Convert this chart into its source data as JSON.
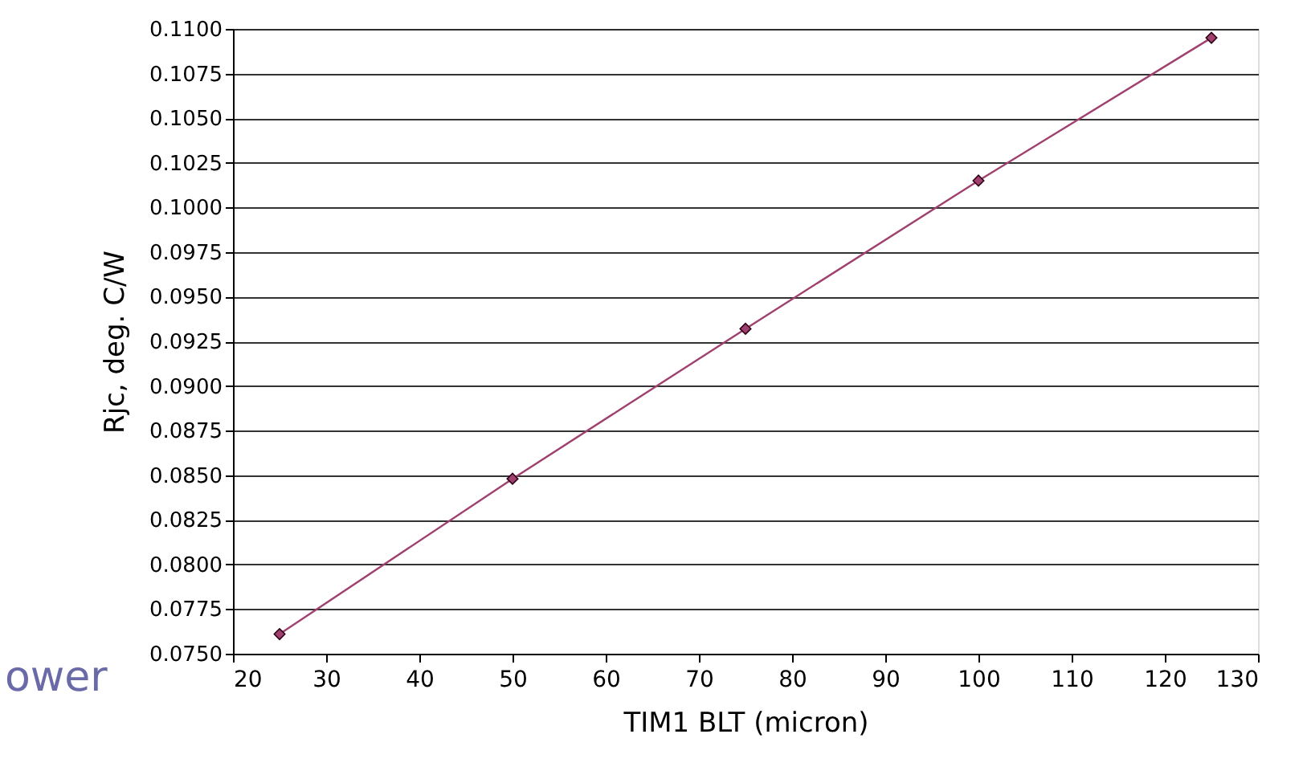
{
  "chart_data": {
    "type": "line",
    "xlabel": "TIM1 BLT (micron)",
    "ylabel": "Rjc, deg. C/W",
    "x": [
      25,
      50,
      75,
      100,
      125
    ],
    "series": [
      {
        "color": "#a0406e",
        "values": [
          0.0761,
          0.0848,
          0.0932,
          0.1015,
          0.1095
        ]
      }
    ],
    "xlim": [
      20,
      130
    ],
    "xticks": [
      20,
      30,
      40,
      50,
      60,
      70,
      80,
      90,
      100,
      110,
      120,
      130
    ],
    "ylim": [
      0.075,
      0.11
    ],
    "yticks": [
      {
        "value": 0.075,
        "label": "0.0750"
      },
      {
        "value": 0.0775,
        "label": "0.0775"
      },
      {
        "value": 0.08,
        "label": "0.0800"
      },
      {
        "value": 0.0825,
        "label": "0.0825"
      },
      {
        "value": 0.085,
        "label": "0.0850"
      },
      {
        "value": 0.0875,
        "label": "0.0875"
      },
      {
        "value": 0.09,
        "label": "0.0900"
      },
      {
        "value": 0.0925,
        "label": "0.0925"
      },
      {
        "value": 0.095,
        "label": "0.0950"
      },
      {
        "value": 0.0975,
        "label": "0.0975"
      },
      {
        "value": 0.1,
        "label": "0.1000"
      },
      {
        "value": 0.1025,
        "label": "0.1025"
      },
      {
        "value": 0.105,
        "label": "0.1050"
      },
      {
        "value": 0.1075,
        "label": "0.1075"
      },
      {
        "value": 0.11,
        "label": "0.1100"
      }
    ],
    "grid": "y",
    "marker": "diamond",
    "line_style": "solid",
    "annotations": [
      "ower"
    ]
  }
}
